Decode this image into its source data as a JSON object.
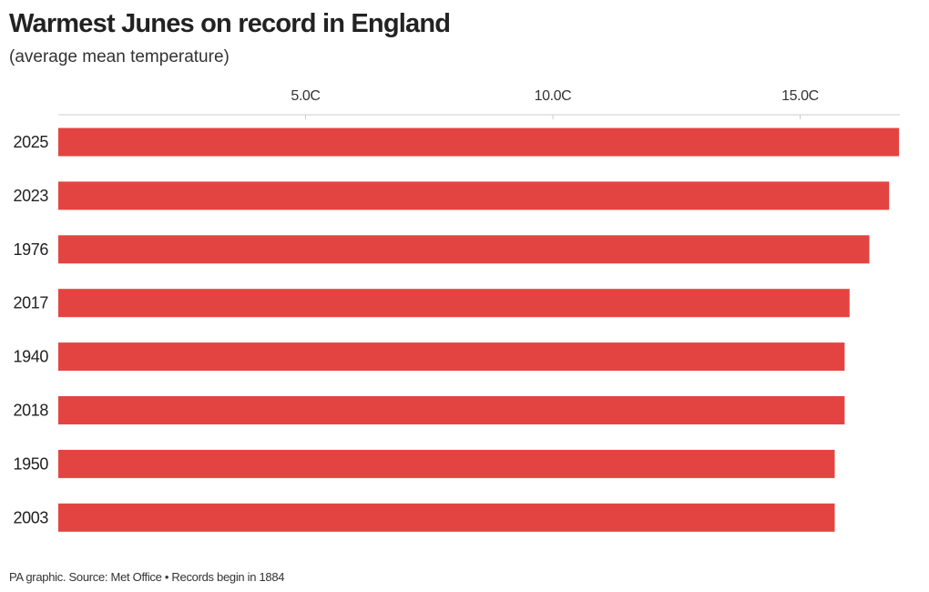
{
  "header": {
    "title": "Warmest Junes on record in England",
    "subtitle": "(average mean temperature)"
  },
  "footer": {
    "source": "PA graphic. Source: Met Office • Records begin in 1884"
  },
  "colors": {
    "bar": "#e44441",
    "axis": "#cccccc",
    "text": "#222222"
  },
  "chart_data": {
    "type": "bar",
    "orientation": "horizontal",
    "categories": [
      "2025",
      "2023",
      "1976",
      "2017",
      "1940",
      "2018",
      "1950",
      "2003"
    ],
    "values": [
      17.0,
      16.8,
      16.4,
      16.0,
      15.9,
      15.9,
      15.7,
      15.7
    ],
    "xticks": [
      5,
      10,
      15
    ],
    "xtick_labels": [
      "5.0C",
      "10.0C",
      "15.0C"
    ],
    "xlim": [
      0,
      17
    ],
    "grid": false,
    "axis_position": "top"
  }
}
